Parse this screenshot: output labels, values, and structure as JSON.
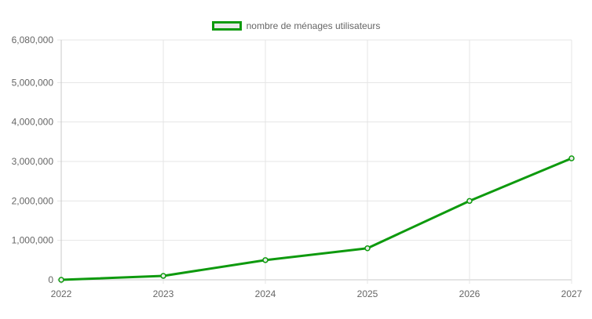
{
  "chart_data": {
    "type": "line",
    "title": "",
    "xlabel": "",
    "ylabel": "",
    "x": [
      "2022",
      "2023",
      "2024",
      "2025",
      "2026",
      "2027"
    ],
    "series": [
      {
        "name": "nombre de ménages utilisateurs",
        "values": [
          0,
          100000,
          500000,
          800000,
          2000000,
          3080000
        ],
        "color": "#0e9a0e"
      }
    ],
    "ylim": [
      0,
      6080000
    ],
    "y_ticks": [
      "0",
      "1,000,000",
      "2,000,000",
      "3,000,000",
      "4,000,000",
      "5,000,000",
      "6,080,000"
    ],
    "y_tick_values": [
      0,
      1000000,
      2000000,
      3000000,
      4000000,
      5000000,
      6080000
    ],
    "grid": true,
    "legend_position": "top-center"
  }
}
